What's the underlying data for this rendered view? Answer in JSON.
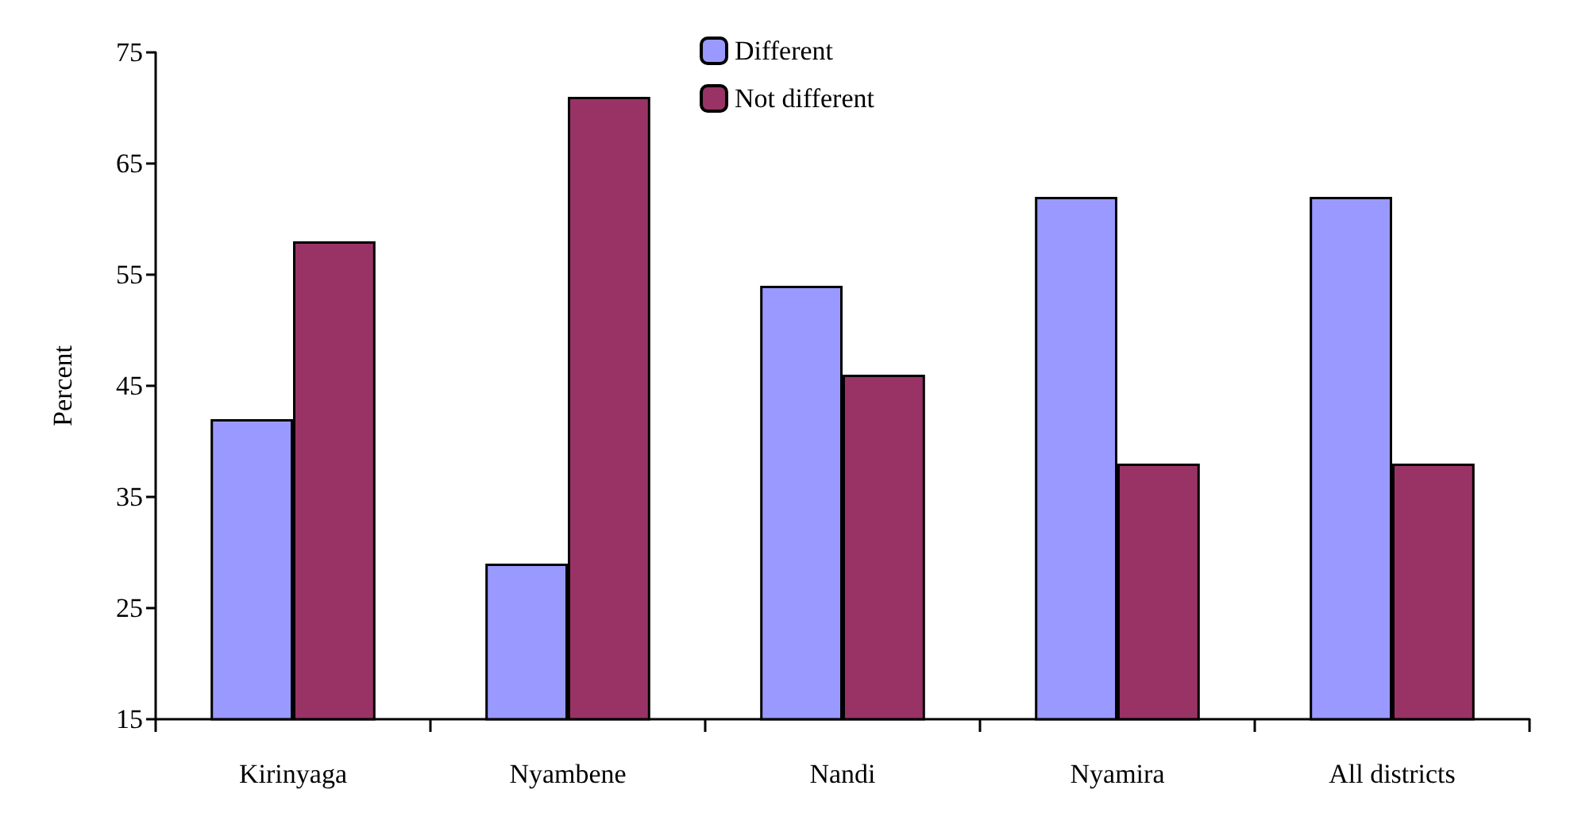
{
  "chart_data": {
    "type": "bar",
    "ylabel": "Percent",
    "categories": [
      "Kirinyaga",
      "Nyambene",
      "Nandi",
      "Nyamira",
      "All districts"
    ],
    "series": [
      {
        "name": "Different",
        "color": "#9999ff",
        "values": [
          42,
          29,
          54,
          62,
          62
        ]
      },
      {
        "name": "Not different",
        "color": "#993366",
        "values": [
          58,
          71,
          46,
          38,
          38
        ]
      }
    ],
    "ylim": [
      15,
      75
    ],
    "yticks": [
      15,
      25,
      35,
      45,
      55,
      65,
      75
    ],
    "grid": false,
    "legend": "top"
  }
}
